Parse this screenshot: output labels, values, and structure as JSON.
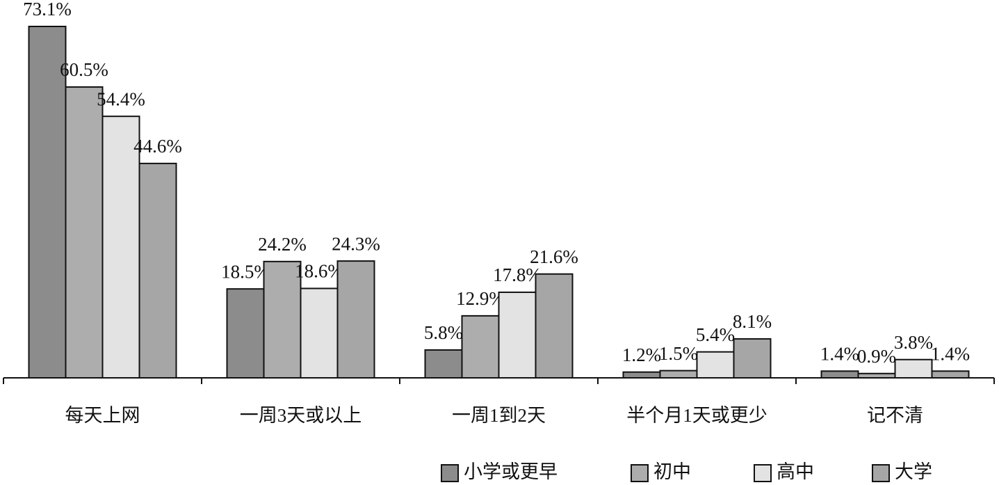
{
  "chart_data": {
    "type": "bar",
    "categories": [
      "每天上网",
      "一周3天或以上",
      "一周1到2天",
      "半个月1天或更少",
      "记不清"
    ],
    "series": [
      {
        "name": "小学或更早",
        "color": "#8c8c8c",
        "values": [
          73.1,
          18.5,
          5.8,
          1.2,
          1.4
        ],
        "value_labels": [
          "73.1%",
          "18.5%",
          "5.8%",
          "1.2%",
          "1.4%"
        ]
      },
      {
        "name": "初中",
        "color": "#adadad",
        "values": [
          60.5,
          24.2,
          12.9,
          1.5,
          0.9
        ],
        "value_labels": [
          "60.5%",
          "24.2%",
          "12.9%",
          "1.5%",
          "0.9%"
        ]
      },
      {
        "name": "高中",
        "color": "#e3e3e3",
        "values": [
          54.4,
          18.6,
          17.8,
          5.4,
          3.8
        ],
        "value_labels": [
          "54.4%",
          "18.6%",
          "17.8%",
          "5.4%",
          "3.8%"
        ]
      },
      {
        "name": "大学",
        "color": "#a6a6a6",
        "values": [
          44.6,
          24.3,
          21.6,
          8.1,
          1.4
        ],
        "value_labels": [
          "44.6%",
          "24.3%",
          "21.6%",
          "8.1%",
          "1.4%"
        ]
      }
    ],
    "legend": "bottom"
  }
}
